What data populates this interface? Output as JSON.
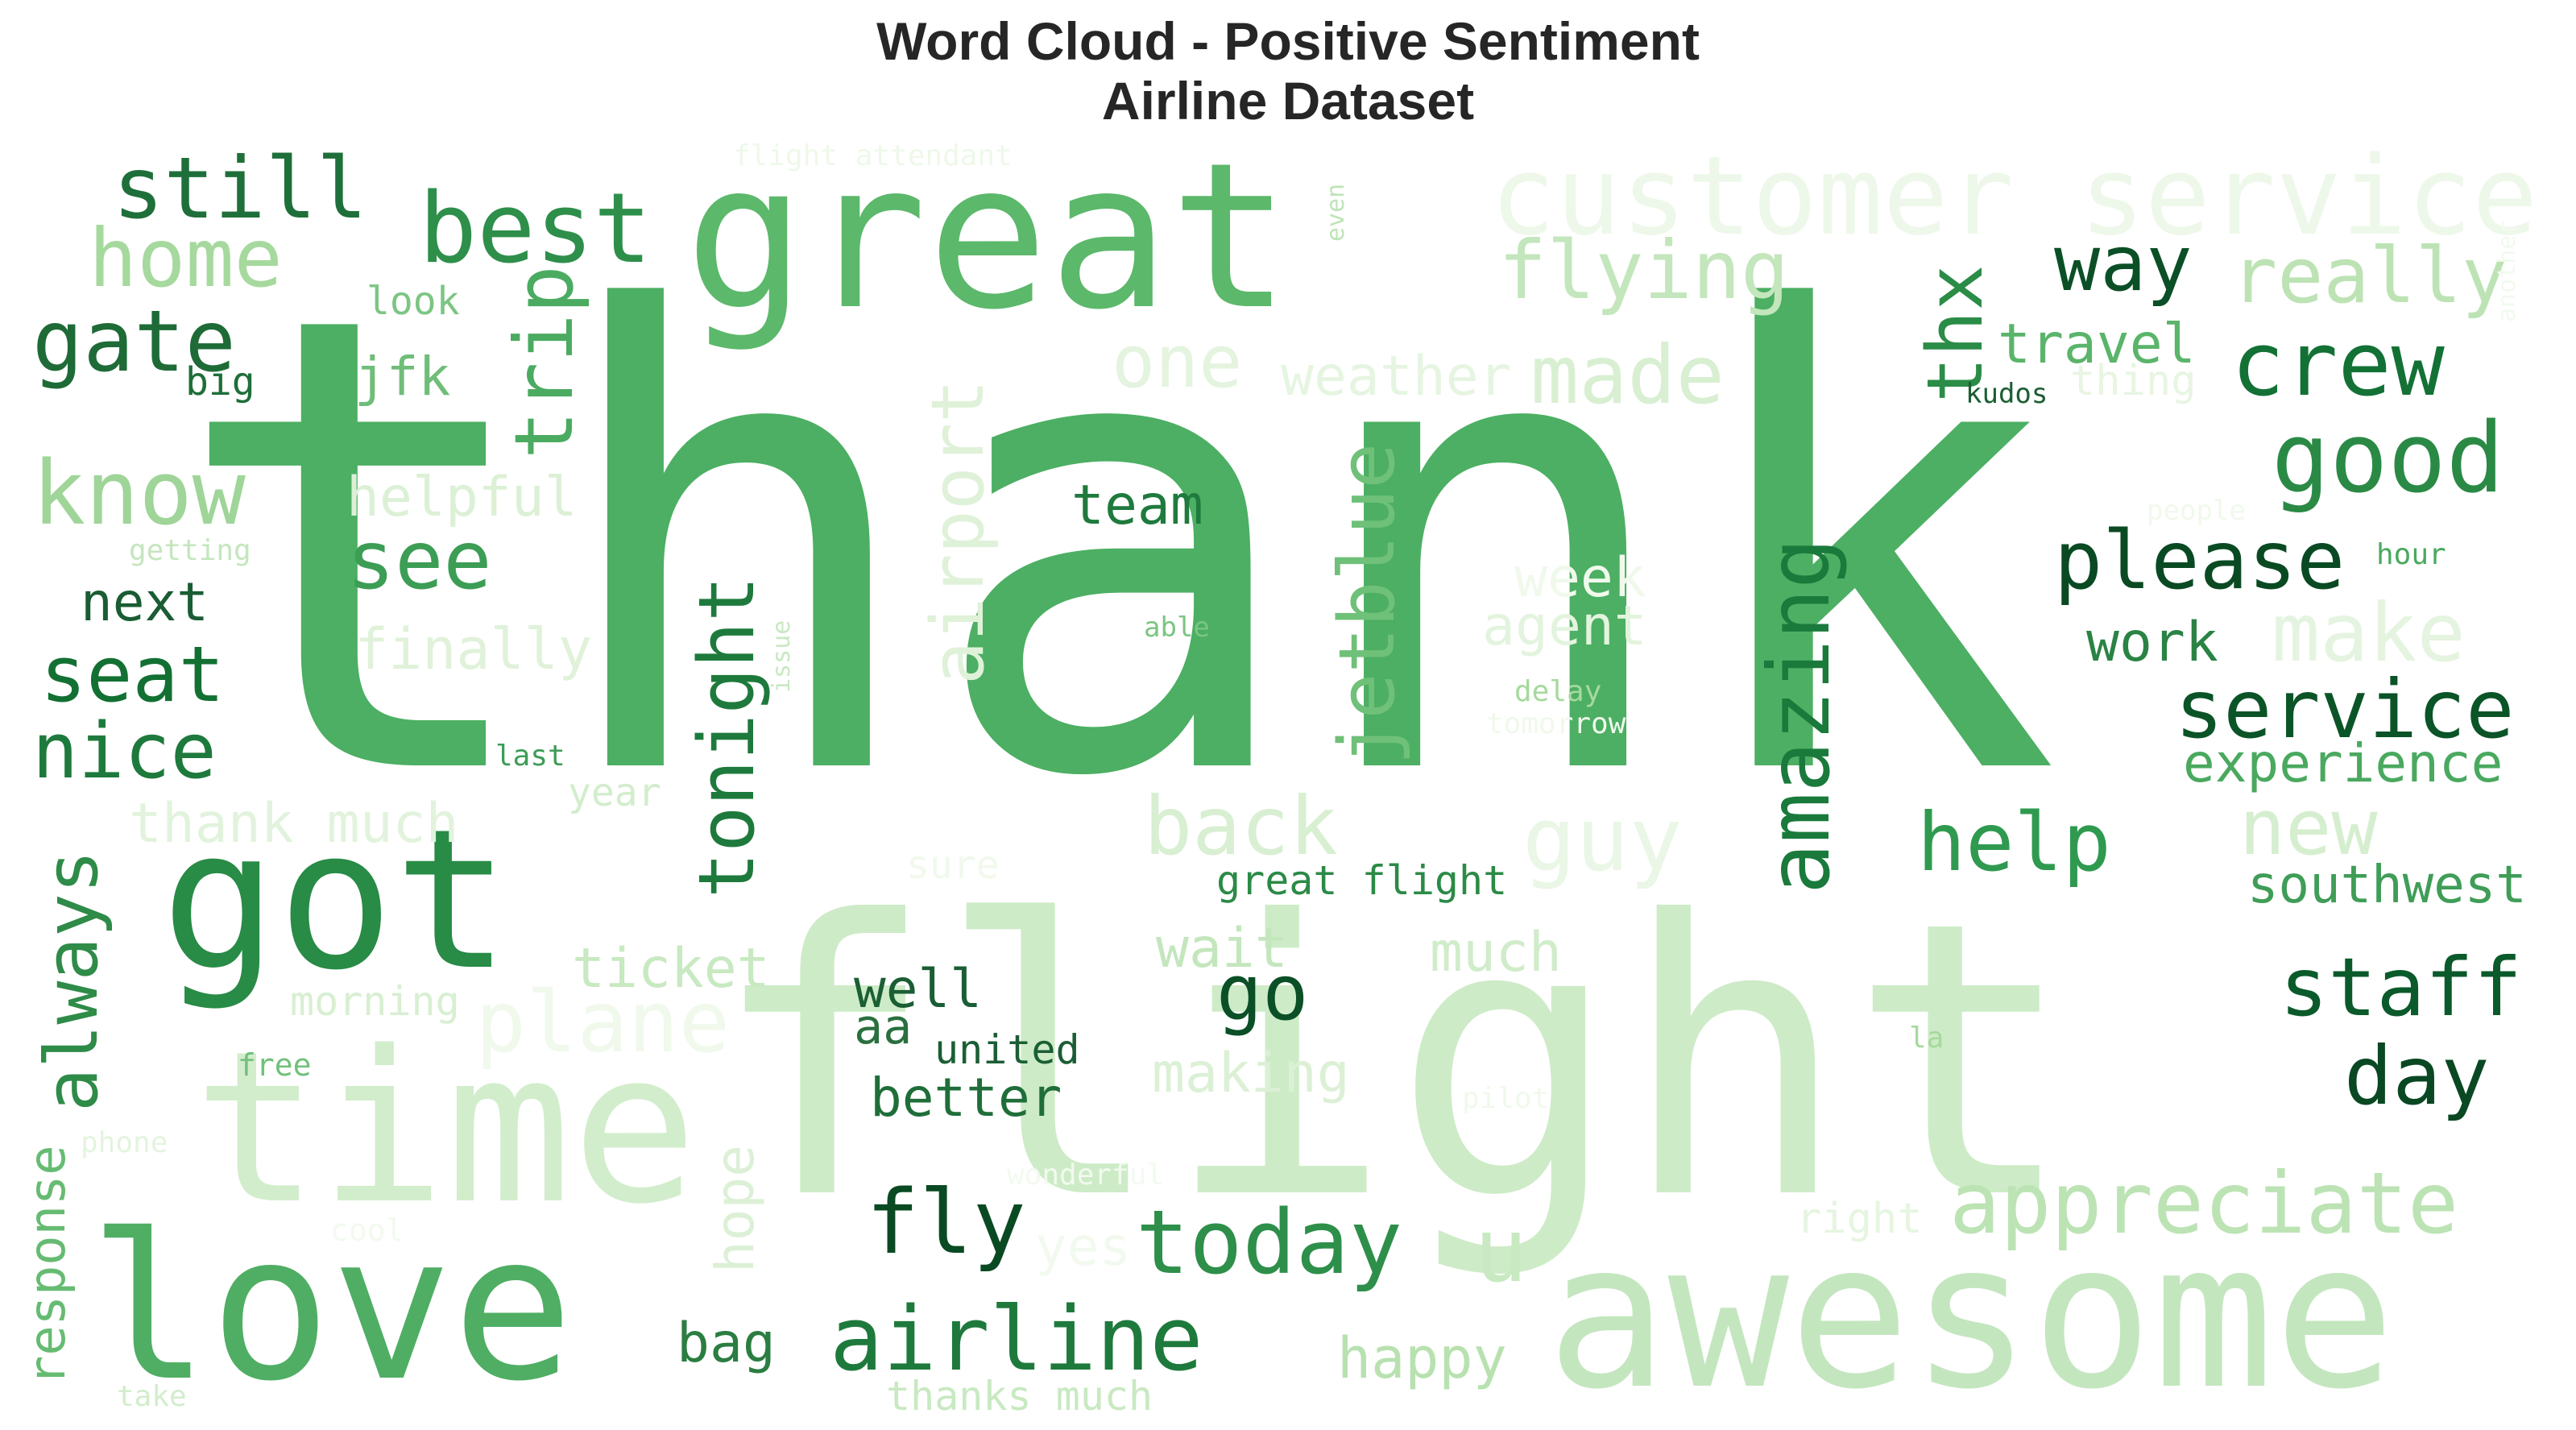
{
  "chart_data": {
    "type": "wordcloud",
    "title": "Word Cloud - Positive Sentiment",
    "subtitle": "Airline Dataset",
    "colormap": "Greens",
    "words": [
      {
        "text": "thank",
        "weight": 100,
        "color": "#4caf63"
      },
      {
        "text": "flight",
        "weight": 90,
        "color": "#cdebc7"
      },
      {
        "text": "great",
        "weight": 55,
        "color": "#5cb86b"
      },
      {
        "text": "time",
        "weight": 45,
        "color": "#d2edcc"
      },
      {
        "text": "love",
        "weight": 45,
        "color": "#4fae64"
      },
      {
        "text": "awesome",
        "weight": 45,
        "color": "#c4e6bf"
      },
      {
        "text": "got",
        "weight": 42,
        "color": "#288b46"
      },
      {
        "text": "customer service",
        "weight": 22,
        "color": "#eef8ea"
      },
      {
        "text": "best",
        "weight": 14,
        "color": "#2e8f4a"
      },
      {
        "text": "still",
        "weight": 12,
        "color": "#1f6f3a"
      },
      {
        "text": "home",
        "weight": 13,
        "color": "#a6d99d"
      },
      {
        "text": "gate",
        "weight": 12,
        "color": "#1e6b37"
      },
      {
        "text": "trip",
        "weight": 10,
        "color": "#4bab61"
      },
      {
        "text": "flying",
        "weight": 12,
        "color": "#c3e6bc"
      },
      {
        "text": "way",
        "weight": 11,
        "color": "#0b4f26"
      },
      {
        "text": "really",
        "weight": 11,
        "color": "#bde3b5"
      },
      {
        "text": "thx",
        "weight": 10,
        "color": "#2b8c47"
      },
      {
        "text": "crew",
        "weight": 13,
        "color": "#137136"
      },
      {
        "text": "one",
        "weight": 10,
        "color": "#e4f4df"
      },
      {
        "text": "made",
        "weight": 12,
        "color": "#d8efd2"
      },
      {
        "text": "travel",
        "weight": 8,
        "color": "#5ab46a"
      },
      {
        "text": "good",
        "weight": 14,
        "color": "#2a8a45"
      },
      {
        "text": "airport",
        "weight": 11,
        "color": "#dff2d9"
      },
      {
        "text": "jetblue",
        "weight": 12,
        "color": "#6fc078"
      },
      {
        "text": "amazing",
        "weight": 12,
        "color": "#1a7a3c"
      },
      {
        "text": "please",
        "weight": 12,
        "color": "#0a4a23"
      },
      {
        "text": "know",
        "weight": 12,
        "color": "#9fd598"
      },
      {
        "text": "helpful",
        "weight": 7,
        "color": "#dcf0d6"
      },
      {
        "text": "see",
        "weight": 11,
        "color": "#3c9d55"
      },
      {
        "text": "team",
        "weight": 7,
        "color": "#1f7a3d"
      },
      {
        "text": "tonight",
        "weight": 11,
        "color": "#1e7a3c"
      },
      {
        "text": "make",
        "weight": 11,
        "color": "#e5f4e0"
      },
      {
        "text": "work",
        "weight": 7,
        "color": "#2a8344"
      },
      {
        "text": "service",
        "weight": 12,
        "color": "#0b5427"
      },
      {
        "text": "experience",
        "weight": 7,
        "color": "#4aa95f"
      },
      {
        "text": "seat",
        "weight": 11,
        "color": "#137033"
      },
      {
        "text": "nice",
        "weight": 11,
        "color": "#1e7a3c"
      },
      {
        "text": "next",
        "weight": 7,
        "color": "#1a5c33"
      },
      {
        "text": "finally",
        "weight": 8,
        "color": "#e0f2da"
      },
      {
        "text": "agent",
        "weight": 7,
        "color": "#e3f4de"
      },
      {
        "text": "week",
        "weight": 7,
        "color": "#f0f9ec"
      },
      {
        "text": "back",
        "weight": 10,
        "color": "#d8efd2"
      },
      {
        "text": "guy",
        "weight": 10,
        "color": "#eaf6e6"
      },
      {
        "text": "help",
        "weight": 11,
        "color": "#2f9a4f"
      },
      {
        "text": "new",
        "weight": 10,
        "color": "#d5eecf"
      },
      {
        "text": "thank much",
        "weight": 7,
        "color": "#e2f3dd"
      },
      {
        "text": "always",
        "weight": 10,
        "color": "#2e8b48"
      },
      {
        "text": "southwest",
        "weight": 7,
        "color": "#3f9d57"
      },
      {
        "text": "staff",
        "weight": 11,
        "color": "#0b5a2b"
      },
      {
        "text": "day",
        "weight": 11,
        "color": "#094822"
      },
      {
        "text": "great flight",
        "weight": 6,
        "color": "#2b8a46"
      },
      {
        "text": "ticket",
        "weight": 7,
        "color": "#c8e9c1"
      },
      {
        "text": "wait",
        "weight": 7,
        "color": "#c4e6bd"
      },
      {
        "text": "much",
        "weight": 7,
        "color": "#d0ecca"
      },
      {
        "text": "plane",
        "weight": 10,
        "color": "#f0f9ec"
      },
      {
        "text": "go",
        "weight": 10,
        "color": "#0b4f26"
      },
      {
        "text": "well",
        "weight": 7,
        "color": "#1b5e34"
      },
      {
        "text": "aa",
        "weight": 7,
        "color": "#2a6f3e"
      },
      {
        "text": "united",
        "weight": 6,
        "color": "#1b5e34"
      },
      {
        "text": "better",
        "weight": 7,
        "color": "#1f6e39"
      },
      {
        "text": "making",
        "weight": 7,
        "color": "#dcf0d6"
      },
      {
        "text": "fly",
        "weight": 11,
        "color": "#0a4a23"
      },
      {
        "text": "today",
        "weight": 11,
        "color": "#2e8f4a"
      },
      {
        "text": "u",
        "weight": 10,
        "color": "#c8e9c1"
      },
      {
        "text": "appreciate",
        "weight": 11,
        "color": "#bce3b4"
      },
      {
        "text": "airline",
        "weight": 11,
        "color": "#1e7a3c"
      },
      {
        "text": "happy",
        "weight": 7,
        "color": "#b8e1b0"
      },
      {
        "text": "bag",
        "weight": 7,
        "color": "#2b7d42"
      },
      {
        "text": "hope",
        "weight": 7,
        "color": "#dcf0d6"
      },
      {
        "text": "response",
        "weight": 7,
        "color": "#66bb72"
      },
      {
        "text": "yes",
        "weight": 7,
        "color": "#f2faef"
      },
      {
        "text": "right",
        "weight": 5,
        "color": "#e6f5e1"
      },
      {
        "text": "thanks much",
        "weight": 5,
        "color": "#c8e9c1"
      },
      {
        "text": "look",
        "weight": 5,
        "color": "#7cc583"
      },
      {
        "text": "big",
        "weight": 5,
        "color": "#1f6e39"
      },
      {
        "text": "jfk",
        "weight": 7,
        "color": "#6fbd79"
      },
      {
        "text": "weather",
        "weight": 7,
        "color": "#e6f5e1"
      },
      {
        "text": "thing",
        "weight": 5,
        "color": "#e8f5e3"
      },
      {
        "text": "kudos",
        "weight": 4,
        "color": "#1b5e34"
      },
      {
        "text": "flight attendant",
        "weight": 4,
        "color": "#eef8ea"
      },
      {
        "text": "even",
        "weight": 3,
        "color": "#bfe4b8"
      },
      {
        "text": "getting",
        "weight": 4,
        "color": "#c4e6bd"
      },
      {
        "text": "issue",
        "weight": 3,
        "color": "#c8e9c1"
      },
      {
        "text": "able",
        "weight": 3,
        "color": "#7cc583"
      },
      {
        "text": "delay",
        "weight": 4,
        "color": "#a6d99d"
      },
      {
        "text": "tomorrow",
        "weight": 4,
        "color": "#f0f9ec"
      },
      {
        "text": "last",
        "weight": 4,
        "color": "#3d9c56"
      },
      {
        "text": "year",
        "weight": 5,
        "color": "#d2edcc"
      },
      {
        "text": "sure",
        "weight": 5,
        "color": "#f0f9ec"
      },
      {
        "text": "morning",
        "weight": 5,
        "color": "#d8efd2"
      },
      {
        "text": "free",
        "weight": 4,
        "color": "#72c07c"
      },
      {
        "text": "phone",
        "weight": 4,
        "color": "#e4f4df"
      },
      {
        "text": "wonderful",
        "weight": 4,
        "color": "#f2faef"
      },
      {
        "text": "cool",
        "weight": 4,
        "color": "#f2faef"
      },
      {
        "text": "take",
        "weight": 4,
        "color": "#d2edcc"
      },
      {
        "text": "pilot",
        "weight": 4,
        "color": "#f0f9ec"
      },
      {
        "text": "la",
        "weight": 4,
        "color": "#a6d99d"
      },
      {
        "text": "people",
        "weight": 3,
        "color": "#f0f9ec"
      },
      {
        "text": "hour",
        "weight": 4,
        "color": "#4aa95f"
      },
      {
        "text": "another",
        "weight": 3,
        "color": "#f2faef"
      }
    ]
  }
}
